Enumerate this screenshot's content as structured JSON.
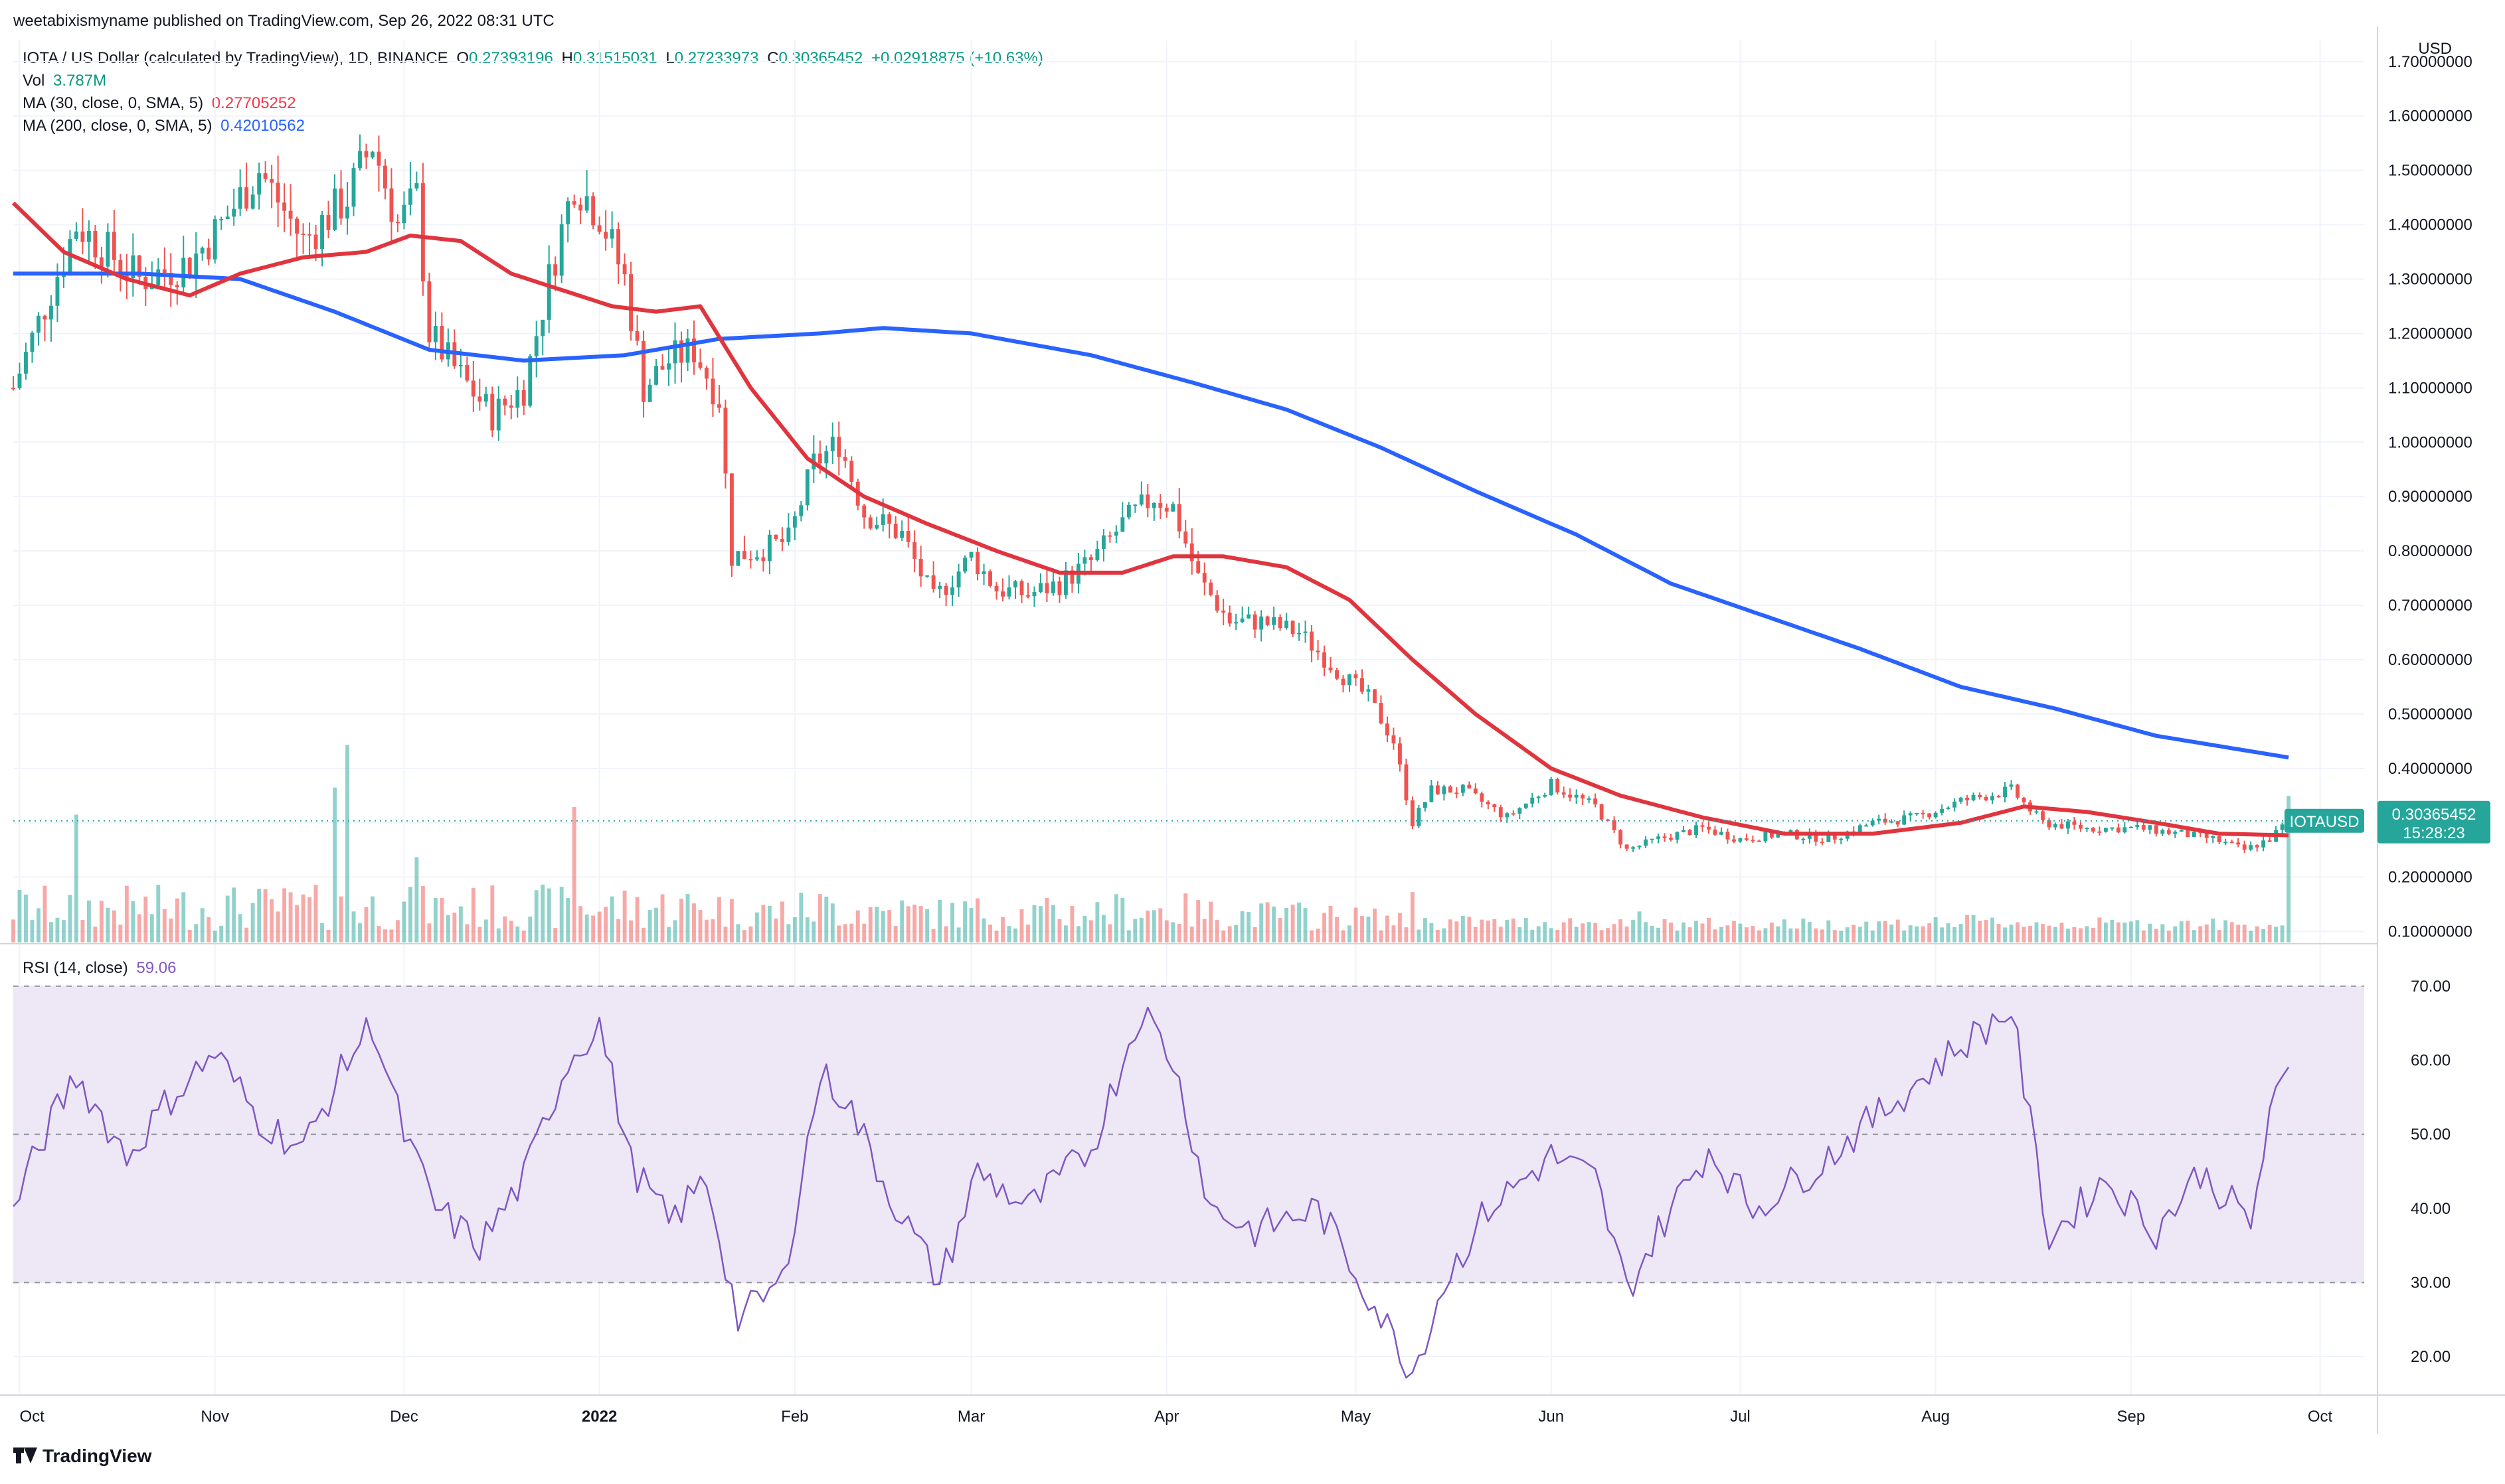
{
  "publisher": "weetabixismyname published on TradingView.com, Sep 26, 2022 08:31 UTC",
  "legend": {
    "symbol": "IOTA / US Dollar (calculated by TradingView), 1D, BINANCE",
    "o_label": "O",
    "o": "0.27393196",
    "h_label": "H",
    "h": "0.31515031",
    "l_label": "L",
    "l": "0.27233973",
    "c_label": "C",
    "c": "0.30365452",
    "change": "+0.02918875 (+10.63%)",
    "vol_label": "Vol",
    "vol": "3.787M",
    "ma30_label": "MA (30, close, 0, SMA, 5)",
    "ma30": "0.27705252",
    "ma200_label": "MA (200, close, 0, SMA, 5)",
    "ma200": "0.42010562",
    "rsi_label": "RSI (14, close)",
    "rsi": "59.06"
  },
  "price_axis": {
    "currency": "USD",
    "ticks": [
      "1.70000000",
      "1.60000000",
      "1.50000000",
      "1.40000000",
      "1.30000000",
      "1.20000000",
      "1.10000000",
      "1.00000000",
      "0.90000000",
      "0.80000000",
      "0.70000000",
      "0.60000000",
      "0.50000000",
      "0.40000000",
      "0.30000000",
      "0.20000000",
      "0.10000000"
    ],
    "last_symbol": "IOTAUSD",
    "last_price": "0.30365452",
    "countdown": "15:28:23"
  },
  "rsi_axis": {
    "ticks": [
      "70.00",
      "60.00",
      "50.00",
      "40.00",
      "30.00",
      "20.00"
    ]
  },
  "time_axis": [
    "Oct",
    "Nov",
    "Dec",
    "2022",
    "Feb",
    "Mar",
    "Apr",
    "May",
    "Jun",
    "Jul",
    "Aug",
    "Sep",
    "Oct"
  ],
  "colors": {
    "up": "#26a69a",
    "down": "#ef5350",
    "ma30": "#e0353e",
    "ma200": "#2962ff",
    "rsi": "#7e57c2",
    "rsi_band": "#ede7f6"
  },
  "brand": "TradingView",
  "chart_data": [
    {
      "type": "candlestick",
      "title": "IOTA / US Dollar",
      "ylim": [
        0.08,
        1.74
      ],
      "x_range": [
        "2021-09-30",
        "2022-10-08"
      ],
      "anchors": [
        {
          "date": "2021-09-30",
          "close": 1.1
        },
        {
          "date": "2021-10-05",
          "close": 1.25
        },
        {
          "date": "2021-10-10",
          "close": 1.4
        },
        {
          "date": "2021-10-20",
          "close": 1.3
        },
        {
          "date": "2021-10-28",
          "close": 1.33
        },
        {
          "date": "2021-11-02",
          "close": 1.4
        },
        {
          "date": "2021-11-08",
          "close": 1.5
        },
        {
          "date": "2021-11-15",
          "close": 1.37
        },
        {
          "date": "2021-11-22",
          "close": 1.45
        },
        {
          "date": "2021-11-26",
          "close": 1.55
        },
        {
          "date": "2021-11-30",
          "close": 1.4
        },
        {
          "date": "2021-12-03",
          "close": 1.45
        },
        {
          "date": "2021-12-05",
          "close": 1.2
        },
        {
          "date": "2021-12-10",
          "close": 1.12
        },
        {
          "date": "2021-12-15",
          "close": 1.05
        },
        {
          "date": "2021-12-20",
          "close": 1.1
        },
        {
          "date": "2021-12-24",
          "close": 1.3
        },
        {
          "date": "2021-12-28",
          "close": 1.48
        },
        {
          "date": "2022-01-01",
          "close": 1.42
        },
        {
          "date": "2022-01-05",
          "close": 1.3
        },
        {
          "date": "2022-01-08",
          "close": 1.1
        },
        {
          "date": "2022-01-12",
          "close": 1.15
        },
        {
          "date": "2022-01-16",
          "close": 1.17
        },
        {
          "date": "2022-01-20",
          "close": 1.08
        },
        {
          "date": "2022-01-22",
          "close": 0.79
        },
        {
          "date": "2022-01-26",
          "close": 0.8
        },
        {
          "date": "2022-01-31",
          "close": 0.82
        },
        {
          "date": "2022-02-04",
          "close": 0.96
        },
        {
          "date": "2022-02-08",
          "close": 1.0
        },
        {
          "date": "2022-02-12",
          "close": 0.87
        },
        {
          "date": "2022-02-18",
          "close": 0.83
        },
        {
          "date": "2022-02-23",
          "close": 0.71
        },
        {
          "date": "2022-03-01",
          "close": 0.79
        },
        {
          "date": "2022-03-05",
          "close": 0.73
        },
        {
          "date": "2022-03-10",
          "close": 0.72
        },
        {
          "date": "2022-03-15",
          "close": 0.74
        },
        {
          "date": "2022-03-20",
          "close": 0.78
        },
        {
          "date": "2022-03-25",
          "close": 0.85
        },
        {
          "date": "2022-03-30",
          "close": 0.9
        },
        {
          "date": "2022-04-02",
          "close": 0.88
        },
        {
          "date": "2022-04-06",
          "close": 0.75
        },
        {
          "date": "2022-04-11",
          "close": 0.67
        },
        {
          "date": "2022-04-16",
          "close": 0.67
        },
        {
          "date": "2022-04-22",
          "close": 0.65
        },
        {
          "date": "2022-04-28",
          "close": 0.58
        },
        {
          "date": "2022-05-03",
          "close": 0.53
        },
        {
          "date": "2022-05-07",
          "close": 0.45
        },
        {
          "date": "2022-05-10",
          "close": 0.3
        },
        {
          "date": "2022-05-13",
          "close": 0.36
        },
        {
          "date": "2022-05-18",
          "close": 0.36
        },
        {
          "date": "2022-05-25",
          "close": 0.31
        },
        {
          "date": "2022-06-01",
          "close": 0.37
        },
        {
          "date": "2022-06-08",
          "close": 0.33
        },
        {
          "date": "2022-06-13",
          "close": 0.25
        },
        {
          "date": "2022-06-18",
          "close": 0.27
        },
        {
          "date": "2022-06-25",
          "close": 0.29
        },
        {
          "date": "2022-07-01",
          "close": 0.27
        },
        {
          "date": "2022-07-08",
          "close": 0.28
        },
        {
          "date": "2022-07-15",
          "close": 0.27
        },
        {
          "date": "2022-07-22",
          "close": 0.3
        },
        {
          "date": "2022-07-29",
          "close": 0.31
        },
        {
          "date": "2022-08-05",
          "close": 0.34
        },
        {
          "date": "2022-08-13",
          "close": 0.36
        },
        {
          "date": "2022-08-18",
          "close": 0.3
        },
        {
          "date": "2022-08-25",
          "close": 0.29
        },
        {
          "date": "2022-09-02",
          "close": 0.29
        },
        {
          "date": "2022-09-09",
          "close": 0.28
        },
        {
          "date": "2022-09-14",
          "close": 0.27
        },
        {
          "date": "2022-09-19",
          "close": 0.25
        },
        {
          "date": "2022-09-23",
          "close": 0.27
        },
        {
          "date": "2022-09-26",
          "close": 0.30365452
        }
      ],
      "ma30_points": [
        {
          "date": "2021-09-30",
          "value": 1.44
        },
        {
          "date": "2021-10-08",
          "value": 1.35
        },
        {
          "date": "2021-10-18",
          "value": 1.3
        },
        {
          "date": "2021-10-28",
          "value": 1.27
        },
        {
          "date": "2021-11-05",
          "value": 1.31
        },
        {
          "date": "2021-11-15",
          "value": 1.34
        },
        {
          "date": "2021-11-25",
          "value": 1.35
        },
        {
          "date": "2021-12-02",
          "value": 1.38
        },
        {
          "date": "2021-12-10",
          "value": 1.37
        },
        {
          "date": "2021-12-18",
          "value": 1.31
        },
        {
          "date": "2021-12-26",
          "value": 1.28
        },
        {
          "date": "2022-01-03",
          "value": 1.25
        },
        {
          "date": "2022-01-10",
          "value": 1.24
        },
        {
          "date": "2022-01-17",
          "value": 1.25
        },
        {
          "date": "2022-01-25",
          "value": 1.1
        },
        {
          "date": "2022-02-03",
          "value": 0.97
        },
        {
          "date": "2022-02-12",
          "value": 0.9
        },
        {
          "date": "2022-02-22",
          "value": 0.85
        },
        {
          "date": "2022-03-05",
          "value": 0.8
        },
        {
          "date": "2022-03-15",
          "value": 0.76
        },
        {
          "date": "2022-03-25",
          "value": 0.76
        },
        {
          "date": "2022-04-02",
          "value": 0.79
        },
        {
          "date": "2022-04-10",
          "value": 0.79
        },
        {
          "date": "2022-04-20",
          "value": 0.77
        },
        {
          "date": "2022-04-30",
          "value": 0.71
        },
        {
          "date": "2022-05-10",
          "value": 0.6
        },
        {
          "date": "2022-05-20",
          "value": 0.5
        },
        {
          "date": "2022-06-01",
          "value": 0.4
        },
        {
          "date": "2022-06-12",
          "value": 0.35
        },
        {
          "date": "2022-06-25",
          "value": 0.31
        },
        {
          "date": "2022-07-08",
          "value": 0.28
        },
        {
          "date": "2022-07-22",
          "value": 0.28
        },
        {
          "date": "2022-08-05",
          "value": 0.3
        },
        {
          "date": "2022-08-15",
          "value": 0.33
        },
        {
          "date": "2022-08-25",
          "value": 0.32
        },
        {
          "date": "2022-09-05",
          "value": 0.3
        },
        {
          "date": "2022-09-15",
          "value": 0.28
        },
        {
          "date": "2022-09-26",
          "value": 0.27705252
        }
      ],
      "ma200_points": [
        {
          "date": "2021-09-30",
          "value": 1.31
        },
        {
          "date": "2021-10-20",
          "value": 1.31
        },
        {
          "date": "2021-11-05",
          "value": 1.3
        },
        {
          "date": "2021-11-20",
          "value": 1.24
        },
        {
          "date": "2021-12-05",
          "value": 1.17
        },
        {
          "date": "2021-12-20",
          "value": 1.15
        },
        {
          "date": "2022-01-05",
          "value": 1.16
        },
        {
          "date": "2022-01-20",
          "value": 1.19
        },
        {
          "date": "2022-02-05",
          "value": 1.2
        },
        {
          "date": "2022-02-15",
          "value": 1.21
        },
        {
          "date": "2022-03-01",
          "value": 1.2
        },
        {
          "date": "2022-03-20",
          "value": 1.16
        },
        {
          "date": "2022-04-05",
          "value": 1.11
        },
        {
          "date": "2022-04-20",
          "value": 1.06
        },
        {
          "date": "2022-05-05",
          "value": 0.99
        },
        {
          "date": "2022-05-20",
          "value": 0.91
        },
        {
          "date": "2022-06-05",
          "value": 0.83
        },
        {
          "date": "2022-06-20",
          "value": 0.74
        },
        {
          "date": "2022-07-05",
          "value": 0.68
        },
        {
          "date": "2022-07-20",
          "value": 0.62
        },
        {
          "date": "2022-08-05",
          "value": 0.55
        },
        {
          "date": "2022-08-20",
          "value": 0.51
        },
        {
          "date": "2022-09-05",
          "value": 0.46
        },
        {
          "date": "2022-09-26",
          "value": 0.42010562
        }
      ],
      "volume_spikes": [
        {
          "date": "2021-10-10",
          "volume": 3.3
        },
        {
          "date": "2021-11-20",
          "volume": 4.0
        },
        {
          "date": "2021-11-22",
          "volume": 5.1
        },
        {
          "date": "2021-12-03",
          "volume": 2.2
        },
        {
          "date": "2021-12-28",
          "volume": 3.5
        },
        {
          "date": "2022-05-10",
          "volume": 1.3
        },
        {
          "date": "2022-06-15",
          "volume": 0.8
        },
        {
          "date": "2022-09-26",
          "volume": 3.787
        }
      ]
    },
    {
      "type": "line",
      "title": "RSI (14, close)",
      "ylim": [
        15,
        75
      ],
      "bands": [
        30,
        50,
        70
      ],
      "points": [
        {
          "date": "2021-09-30",
          "value": 40
        },
        {
          "date": "2021-10-05",
          "value": 50
        },
        {
          "date": "2021-10-10",
          "value": 58
        },
        {
          "date": "2021-10-18",
          "value": 47
        },
        {
          "date": "2021-10-25",
          "value": 55
        },
        {
          "date": "2021-11-01",
          "value": 61
        },
        {
          "date": "2021-11-08",
          "value": 52
        },
        {
          "date": "2021-11-15",
          "value": 48
        },
        {
          "date": "2021-11-22",
          "value": 60
        },
        {
          "date": "2021-11-26",
          "value": 65
        },
        {
          "date": "2021-12-01",
          "value": 50
        },
        {
          "date": "2021-12-06",
          "value": 40
        },
        {
          "date": "2021-12-13",
          "value": 35
        },
        {
          "date": "2021-12-20",
          "value": 44
        },
        {
          "date": "2021-12-27",
          "value": 60
        },
        {
          "date": "2022-01-01",
          "value": 65
        },
        {
          "date": "2022-01-06",
          "value": 46
        },
        {
          "date": "2022-01-12",
          "value": 38
        },
        {
          "date": "2022-01-18",
          "value": 44
        },
        {
          "date": "2022-01-23",
          "value": 25
        },
        {
          "date": "2022-01-30",
          "value": 30
        },
        {
          "date": "2022-02-05",
          "value": 58
        },
        {
          "date": "2022-02-09",
          "value": 55
        },
        {
          "date": "2022-02-16",
          "value": 42
        },
        {
          "date": "2022-02-24",
          "value": 30
        },
        {
          "date": "2022-03-02",
          "value": 45
        },
        {
          "date": "2022-03-10",
          "value": 40
        },
        {
          "date": "2022-03-20",
          "value": 48
        },
        {
          "date": "2022-03-28",
          "value": 67
        },
        {
          "date": "2022-04-02",
          "value": 60
        },
        {
          "date": "2022-04-08",
          "value": 40
        },
        {
          "date": "2022-04-15",
          "value": 37
        },
        {
          "date": "2022-04-25",
          "value": 40
        },
        {
          "date": "2022-05-02",
          "value": 30
        },
        {
          "date": "2022-05-10",
          "value": 18
        },
        {
          "date": "2022-05-15",
          "value": 30
        },
        {
          "date": "2022-05-22",
          "value": 40
        },
        {
          "date": "2022-06-01",
          "value": 47
        },
        {
          "date": "2022-06-08",
          "value": 44
        },
        {
          "date": "2022-06-13",
          "value": 29
        },
        {
          "date": "2022-06-20",
          "value": 40
        },
        {
          "date": "2022-06-26",
          "value": 48
        },
        {
          "date": "2022-07-03",
          "value": 40
        },
        {
          "date": "2022-07-12",
          "value": 45
        },
        {
          "date": "2022-07-22",
          "value": 52
        },
        {
          "date": "2022-07-29",
          "value": 57
        },
        {
          "date": "2022-08-05",
          "value": 62
        },
        {
          "date": "2022-08-13",
          "value": 67
        },
        {
          "date": "2022-08-19",
          "value": 36
        },
        {
          "date": "2022-08-28",
          "value": 44
        },
        {
          "date": "2022-09-05",
          "value": 37
        },
        {
          "date": "2022-09-12",
          "value": 45
        },
        {
          "date": "2022-09-20",
          "value": 38
        },
        {
          "date": "2022-09-23",
          "value": 52
        },
        {
          "date": "2022-09-26",
          "value": 59.06
        }
      ]
    }
  ]
}
